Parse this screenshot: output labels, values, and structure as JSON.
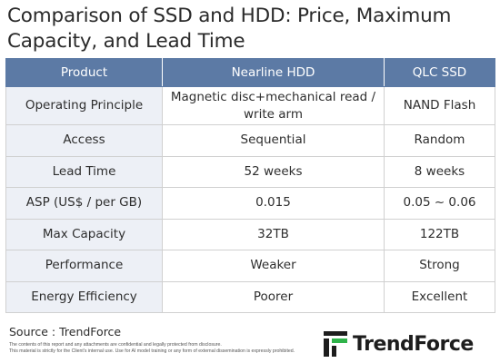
{
  "title": "Comparison of SSD and HDD: Price, Maximum Capacity, and Lead Time",
  "table": {
    "headers": [
      "Product",
      "Nearline HDD",
      "QLC SSD"
    ],
    "rows": [
      [
        "Operating Principle",
        "Magnetic disc+mechanical read / write arm",
        "NAND Flash"
      ],
      [
        "Access",
        "Sequential",
        "Random"
      ],
      [
        "Lead Time",
        "52 weeks",
        "8 weeks"
      ],
      [
        "ASP (US$ / per GB)",
        "0.015",
        "0.05 ~ 0.06"
      ],
      [
        "Max Capacity",
        "32TB",
        "122TB"
      ],
      [
        "Performance",
        "Weaker",
        "Strong"
      ],
      [
        "Energy Efficiency",
        "Poorer",
        "Excellent"
      ]
    ]
  },
  "source": "Source : TrendForce",
  "disclaimer": [
    "The contents of this report and any attachments are confidential and legally protected from disclosure.",
    "This material is strictly for the Client's internal use. Use for AI model training or any form of external dissemination is expressly prohibited."
  ],
  "brand": {
    "name": "TrendForce",
    "logo_color": "#1d1d1d",
    "accent_color": "#2fb34a"
  },
  "watermark": {
    "text": "TrendForce"
  },
  "colors": {
    "header_bg": "#5c7aa5",
    "rowhead_bg": "#edf0f6"
  }
}
